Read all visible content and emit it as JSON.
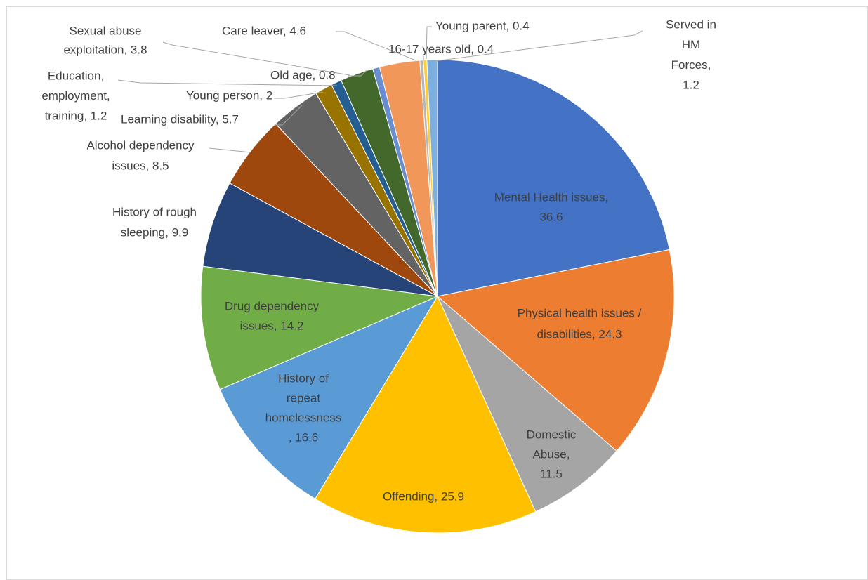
{
  "chart_data": {
    "type": "pie",
    "labels": [
      [
        "Mental Health issues,",
        "36.6"
      ],
      [
        "Physical health issues /",
        "disabilities, 24.3"
      ],
      [
        "Domestic",
        "Abuse,",
        "11.5"
      ],
      [
        "Offending, 25.9"
      ],
      [
        "History of",
        "repeat",
        "homelessness",
        ", 16.6"
      ],
      [
        "Drug dependency",
        "issues, 14.2"
      ],
      [
        "History of rough",
        "sleeping, 9.9"
      ],
      [
        "Alcohol dependency",
        "issues, 8.5"
      ],
      [
        "Learning disability, 5.7"
      ],
      [
        "Young person, 2"
      ],
      [
        "Education,",
        "employment,",
        "training, 1.2"
      ],
      [
        "Sexual abuse",
        "exploitation, 3.8"
      ],
      [
        "Old age, 0.8"
      ],
      [
        "Care leaver, 4.6"
      ],
      [
        "16-17 years old, 0.4"
      ],
      [
        "Young parent, 0.4"
      ],
      [
        "Served in",
        "HM",
        "Forces,",
        "1.2"
      ]
    ],
    "values": [
      36.6,
      24.3,
      11.5,
      25.9,
      16.6,
      14.2,
      9.9,
      8.5,
      5.7,
      2,
      1.2,
      3.8,
      0.8,
      4.6,
      0.4,
      0.4,
      1.2
    ],
    "colors": [
      "#4472c4",
      "#ed7d31",
      "#a5a5a5",
      "#ffc000",
      "#5b9bd5",
      "#70ad47",
      "#264478",
      "#9e480e",
      "#636363",
      "#997300",
      "#255e91",
      "#43682b",
      "#698ed0",
      "#f1975a",
      "#b7b7b7",
      "#ffcd33",
      "#7cafdd"
    ]
  }
}
